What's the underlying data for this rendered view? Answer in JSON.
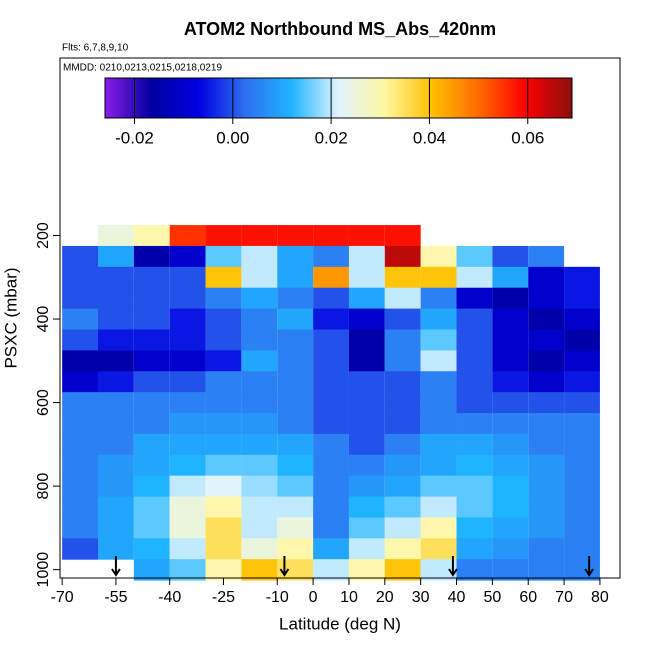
{
  "chart_data": {
    "type": "heatmap",
    "title": "ATOM2 Northbound MS_Abs_420nm",
    "subtitle": "Flts: 6,7,8,9,10",
    "annotation": "MMDD: 0210,0213,0215,0218,0219",
    "xlabel": "Latitude (deg N)",
    "ylabel": "PSXC (mbar)",
    "xlim": [
      -70.6,
      85.6
    ],
    "xticks": [
      -70,
      -55,
      -40,
      -25,
      -10,
      0,
      10,
      20,
      30,
      40,
      50,
      60,
      70,
      80
    ],
    "ylim": [
      1020,
      -225
    ],
    "yticks": [
      200,
      400,
      600,
      800,
      1000
    ],
    "zlim": [
      -0.026,
      0.069
    ],
    "zticks": [
      {
        "value": -0.02,
        "label": "-0.02"
      },
      {
        "value": 0,
        "label": "0.00"
      },
      {
        "value": 0.02,
        "label": "0.02"
      },
      {
        "value": 0.04,
        "label": "0.04"
      },
      {
        "value": 0.06,
        "label": "0.06"
      }
    ],
    "colors": [
      "#8b1ee8",
      "#0000a0",
      "#0000e0",
      "#2f6fef",
      "#1eb4ff",
      "#e0f4ff",
      "#fff7a0",
      "#ffc000",
      "#ff6a00",
      "#ff0000",
      "#8b1010"
    ],
    "x": [
      -65,
      -55,
      -45,
      -35,
      -25,
      -15,
      -5,
      5,
      15,
      25,
      35,
      45,
      55,
      65,
      75
    ],
    "y": [
      200,
      250,
      300,
      350,
      400,
      450,
      500,
      550,
      600,
      650,
      700,
      750,
      800,
      850,
      900,
      950,
      1000
    ],
    "z": [
      [
        null,
        0.025,
        0.03,
        0.055,
        0.058,
        0.058,
        0.058,
        0.058,
        0.058,
        0.058,
        null,
        null,
        null,
        null,
        null
      ],
      [
        0.0,
        0.01,
        -0.015,
        -0.01,
        0.015,
        0.02,
        0.01,
        0.005,
        0.02,
        0.065,
        0.03,
        0.015,
        0.0,
        0.005,
        null
      ],
      [
        0.0,
        0.0,
        0.0,
        0.0,
        0.04,
        0.02,
        0.01,
        0.045,
        0.02,
        0.04,
        0.04,
        0.02,
        0.01,
        -0.01,
        -0.005
      ],
      [
        0.0,
        0.0,
        0.0,
        0.0,
        0.005,
        0.01,
        0.005,
        0.0,
        0.01,
        0.02,
        0.005,
        -0.01,
        -0.015,
        -0.01,
        -0.005
      ],
      [
        0.005,
        0.0,
        0.0,
        -0.005,
        0.0,
        0.005,
        0.01,
        -0.005,
        -0.01,
        0.0,
        0.01,
        0.0,
        -0.01,
        -0.015,
        -0.01
      ],
      [
        0.0,
        -0.005,
        -0.005,
        -0.005,
        0.0,
        0.005,
        0.005,
        0.0,
        -0.015,
        0.005,
        0.015,
        0.0,
        -0.01,
        -0.01,
        -0.015
      ],
      [
        -0.015,
        -0.015,
        -0.01,
        -0.01,
        -0.005,
        0.01,
        0.005,
        0.0,
        -0.015,
        0.005,
        0.02,
        0.0,
        -0.01,
        -0.015,
        -0.01
      ],
      [
        -0.01,
        -0.005,
        0.0,
        0.0,
        0.005,
        0.005,
        0.005,
        0.0,
        0.0,
        0.0,
        0.005,
        0.0,
        -0.005,
        -0.01,
        -0.005
      ],
      [
        0.005,
        0.005,
        0.005,
        0.005,
        0.005,
        0.005,
        0.005,
        0.0,
        0.0,
        0.0,
        0.005,
        0.0,
        0.0,
        0.0,
        0.0
      ],
      [
        0.005,
        0.005,
        0.005,
        0.008,
        0.008,
        0.008,
        0.005,
        0.0,
        0.0,
        0.0,
        0.005,
        0.005,
        0.005,
        0.005,
        0.005
      ],
      [
        0.005,
        0.005,
        0.01,
        0.01,
        0.01,
        0.01,
        0.01,
        0.005,
        0.0,
        0.005,
        0.01,
        0.01,
        0.008,
        0.005,
        0.005
      ],
      [
        0.005,
        0.008,
        0.01,
        0.012,
        0.015,
        0.015,
        0.012,
        0.005,
        0.005,
        0.008,
        0.01,
        0.012,
        0.01,
        0.008,
        0.005
      ],
      [
        0.005,
        0.008,
        0.012,
        0.02,
        0.022,
        0.018,
        0.015,
        0.005,
        0.008,
        0.01,
        0.015,
        0.015,
        0.012,
        0.008,
        0.005
      ],
      [
        0.005,
        0.01,
        0.015,
        0.025,
        0.03,
        0.02,
        0.02,
        0.005,
        0.012,
        0.015,
        0.02,
        0.015,
        0.012,
        0.008,
        0.005
      ],
      [
        0.005,
        0.01,
        0.015,
        0.025,
        0.035,
        0.02,
        0.025,
        0.005,
        0.015,
        0.02,
        0.03,
        0.012,
        0.01,
        0.008,
        0.005
      ],
      [
        0.0,
        0.01,
        0.012,
        0.02,
        0.035,
        0.025,
        0.03,
        0.01,
        0.02,
        0.03,
        0.035,
        0.01,
        0.008,
        0.005,
        0.005
      ],
      [
        null,
        null,
        0.01,
        0.015,
        0.03,
        0.04,
        0.035,
        0.02,
        0.03,
        0.04,
        0.02,
        0.005,
        0.005,
        0.005,
        0.005
      ]
    ],
    "arrows": [
      -55,
      -8,
      39,
      77
    ]
  }
}
